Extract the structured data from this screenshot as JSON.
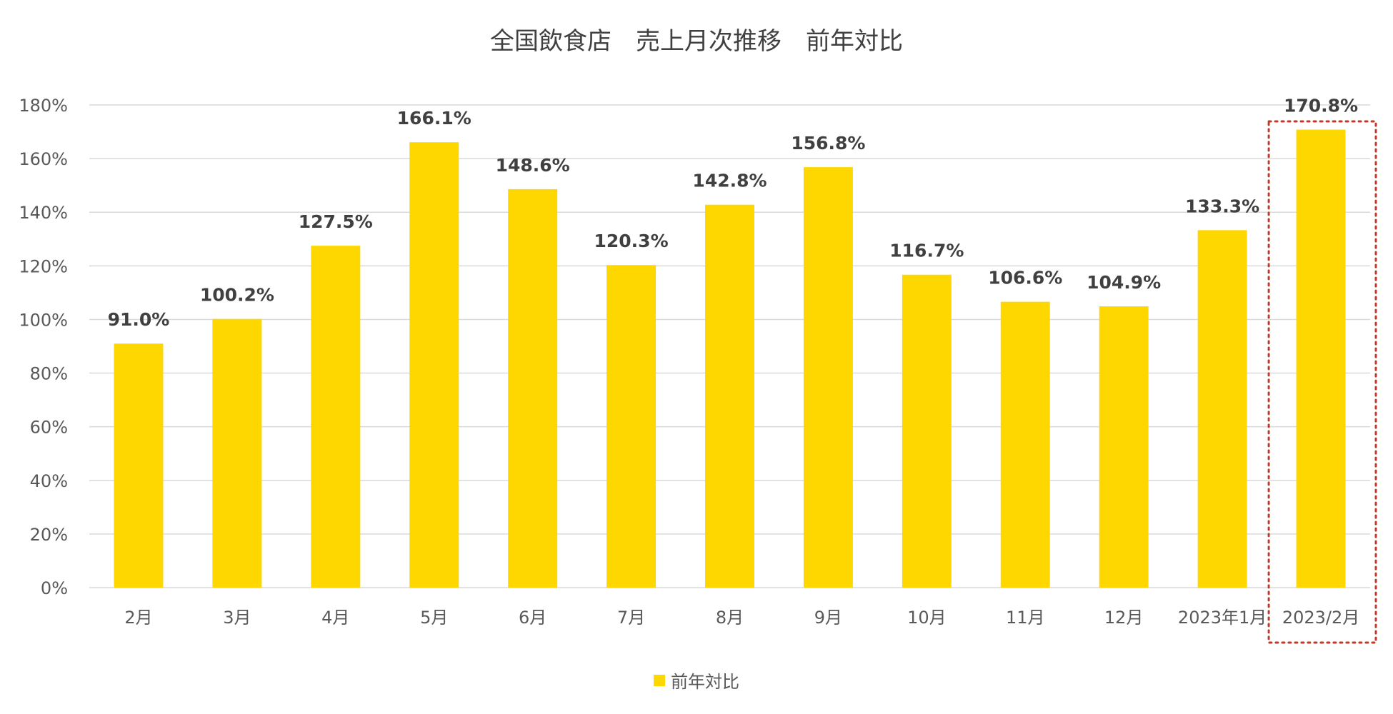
{
  "chart_data": {
    "type": "bar",
    "title": "全国飲食店　売上月次推移　前年対比",
    "categories": [
      "2月",
      "3月",
      "4月",
      "5月",
      "6月",
      "7月",
      "8月",
      "9月",
      "10月",
      "11月",
      "12月",
      "2023年1月",
      "2023/2月"
    ],
    "series": [
      {
        "name": "前年対比",
        "values": [
          91.0,
          100.2,
          127.5,
          166.1,
          148.6,
          120.3,
          142.8,
          156.8,
          116.7,
          106.6,
          104.9,
          133.3,
          170.8
        ],
        "data_labels": [
          "91.0%",
          "100.2%",
          "127.5%",
          "166.1%",
          "148.6%",
          "120.3%",
          "142.8%",
          "156.8%",
          "116.7%",
          "106.6%",
          "104.9%",
          "133.3%",
          "170.8%"
        ]
      }
    ],
    "ylim": [
      0,
      180
    ],
    "y_ticks": [
      "0%",
      "20%",
      "40%",
      "60%",
      "80%",
      "100%",
      "120%",
      "140%",
      "160%",
      "180%"
    ],
    "y_tick_values": [
      0,
      20,
      40,
      60,
      80,
      100,
      120,
      140,
      160,
      180
    ],
    "grid": true,
    "legend_position": "bottom",
    "highlight_category": "2023/2月",
    "colors": {
      "bar": "#FFD700",
      "grid": "#D9D9D9",
      "text": "#595959",
      "label": "#404040",
      "highlight_border": "#C0392B"
    }
  }
}
